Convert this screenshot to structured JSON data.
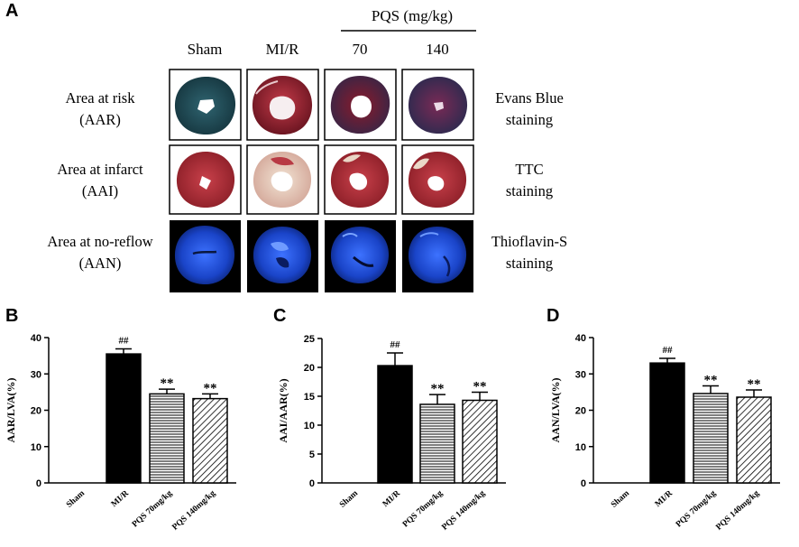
{
  "panel_labels": {
    "a": "A",
    "b": "B",
    "c": "C",
    "d": "D"
  },
  "panel_a": {
    "pqs_header": "PQS (mg/kg)",
    "columns": [
      "Sham",
      "MI/R",
      "70",
      "140"
    ],
    "rows": [
      {
        "label1": "Area at risk",
        "label2": "(AAR)",
        "stain1": "Evans Blue",
        "stain2": "staining"
      },
      {
        "label1": "Area at infarct",
        "label2": "(AAI)",
        "stain1": "TTC",
        "stain2": "staining"
      },
      {
        "label1": "Area at no-reflow",
        "label2": "(AAN)",
        "stain1": "Thioflavin-S",
        "stain2": "staining"
      }
    ],
    "colors": {
      "evans_blue_sham": "#1f4a55",
      "evans_blue_red": "#8a1f2e",
      "evans_blue_purple": "#5a2a4f",
      "ttc_red": "#b3323c",
      "ttc_pale": "#e8d9c8",
      "thioflavin_bg": "#000000",
      "thioflavin_blue": "#1a4fe0"
    }
  },
  "chart_data": [
    {
      "panel": "B",
      "type": "bar",
      "categories": [
        "Sham",
        "MI/R",
        "PQS 70mg/kg",
        "PQS 140mg/kg"
      ],
      "values": [
        0,
        35.5,
        24.5,
        23.2
      ],
      "errors": [
        0,
        1.4,
        1.3,
        1.3
      ],
      "annotations": [
        "",
        "##",
        "**",
        "**"
      ],
      "fills": [
        "none",
        "solid",
        "horizontal",
        "diagonal"
      ],
      "ylabel": "AAR/LVA(%)",
      "ylim": [
        0,
        40
      ],
      "yticks": [
        0,
        10,
        20,
        30,
        40
      ]
    },
    {
      "panel": "C",
      "type": "bar",
      "categories": [
        "Sham",
        "MI/R",
        "PQS 70mg/kg",
        "PQS 140mg/kg"
      ],
      "values": [
        0,
        20.3,
        13.6,
        14.3
      ],
      "errors": [
        0,
        2.2,
        1.7,
        1.4
      ],
      "annotations": [
        "",
        "##",
        "**",
        "**"
      ],
      "fills": [
        "none",
        "solid",
        "horizontal",
        "diagonal"
      ],
      "ylabel": "AAI/AAR(%)",
      "ylim": [
        0,
        25
      ],
      "yticks": [
        0,
        5,
        10,
        15,
        20,
        25
      ]
    },
    {
      "panel": "D",
      "type": "bar",
      "categories": [
        "Sham",
        "MI/R",
        "PQS 70mg/kg",
        "PQS 140mg/kg"
      ],
      "values": [
        0,
        33.0,
        24.6,
        23.6
      ],
      "errors": [
        0,
        1.3,
        2.1,
        2.0
      ],
      "annotations": [
        "",
        "##",
        "**",
        "**"
      ],
      "fills": [
        "none",
        "solid",
        "horizontal",
        "diagonal"
      ],
      "ylabel": "AAN/LVA(%)",
      "ylim": [
        0,
        40
      ],
      "yticks": [
        0,
        10,
        20,
        30,
        40
      ]
    }
  ]
}
